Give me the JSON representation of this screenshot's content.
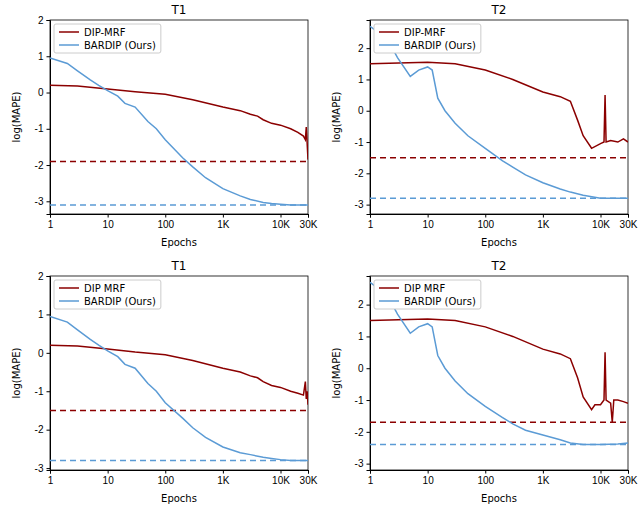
{
  "chart_data": [
    {
      "type": "line",
      "title": "T1",
      "x_label": "Epochs",
      "y_label": "log(MAPE)",
      "log": "x",
      "legend": "upper left",
      "xlim": [
        1,
        30000
      ],
      "xticks": [
        1,
        10,
        100,
        {
          "value": 1000,
          "label": "1K"
        },
        {
          "value": 10000,
          "label": "10K"
        },
        {
          "value": 30000,
          "label": "30K"
        }
      ],
      "ylim": [
        -3.35,
        2
      ],
      "yticks": [
        -3,
        -2,
        -1,
        0,
        1,
        2
      ],
      "series": [
        {
          "name": "DIP-MRF",
          "color": "#8b0000",
          "line_style": "solid",
          "x": [
            1,
            3,
            10,
            30,
            100,
            300,
            1000,
            2000,
            3000,
            4000,
            5000,
            7000,
            10000,
            15000,
            20000,
            25000,
            27000,
            28000,
            29000,
            30000
          ],
          "values": [
            0.2,
            0.18,
            0.1,
            0.02,
            -0.05,
            -0.2,
            -0.4,
            -0.5,
            -0.6,
            -0.65,
            -0.75,
            -0.85,
            -0.9,
            -1.0,
            -1.1,
            -1.2,
            -1.3,
            -0.95,
            -1.4,
            -1.85
          ]
        },
        {
          "name": "BARDIP (Ours)",
          "color": "#5b9bd5",
          "line_style": "solid",
          "x": [
            1,
            2,
            3,
            5,
            7,
            10,
            15,
            20,
            30,
            50,
            70,
            100,
            200,
            300,
            500,
            1000,
            2000,
            3000,
            5000,
            7000,
            10000,
            15000,
            20000,
            30000
          ],
          "values": [
            0.95,
            0.8,
            0.6,
            0.35,
            0.2,
            0.05,
            -0.1,
            -0.3,
            -0.4,
            -0.8,
            -1.0,
            -1.3,
            -1.8,
            -2.05,
            -2.35,
            -2.65,
            -2.85,
            -2.95,
            -3.03,
            -3.06,
            -3.08,
            -3.1,
            -3.1,
            -3.1
          ]
        }
      ],
      "reference_lines": [
        {
          "value": -1.9,
          "color": "#8b0000",
          "line_style": "dashed"
        },
        {
          "value": -3.1,
          "color": "#5b9bd5",
          "line_style": "dashed"
        }
      ]
    },
    {
      "type": "line",
      "title": "T2",
      "x_label": "Epochs",
      "y_label": "log(MAPE)",
      "log": "x",
      "legend": "upper left",
      "xlim": [
        1,
        30000
      ],
      "xticks": [
        1,
        10,
        100,
        {
          "value": 1000,
          "label": "1K"
        },
        {
          "value": 10000,
          "label": "10K"
        },
        {
          "value": 30000,
          "label": "30K"
        }
      ],
      "ylim": [
        -3.3,
        2.9
      ],
      "yticks": [
        -3,
        -2,
        -1,
        0,
        1,
        2
      ],
      "series": [
        {
          "name": "DIP-MRF",
          "color": "#8b0000",
          "line_style": "solid",
          "x": [
            1,
            10,
            30,
            100,
            300,
            1000,
            2000,
            3000,
            4000,
            5000,
            7000,
            10000,
            11500,
            12000,
            12500,
            15000,
            20000,
            25000,
            30000
          ],
          "values": [
            1.5,
            1.55,
            1.5,
            1.3,
            1.0,
            0.6,
            0.45,
            0.3,
            -0.3,
            -0.8,
            -1.2,
            -1.05,
            -1.0,
            0.5,
            -1.0,
            -0.95,
            -1.0,
            -0.9,
            -1.0
          ]
        },
        {
          "name": "BARDIP (Ours)",
          "color": "#5b9bd5",
          "line_style": "solid",
          "x": [
            1,
            2,
            3,
            5,
            7,
            10,
            12,
            15,
            20,
            30,
            50,
            100,
            200,
            300,
            500,
            1000,
            2000,
            3000,
            5000,
            10000,
            20000,
            30000
          ],
          "values": [
            2.7,
            2.3,
            1.7,
            1.1,
            1.3,
            1.4,
            1.3,
            0.4,
            0.0,
            -0.4,
            -0.8,
            -1.2,
            -1.6,
            -1.8,
            -2.05,
            -2.3,
            -2.5,
            -2.6,
            -2.7,
            -2.8,
            -2.8,
            -2.8
          ]
        }
      ],
      "reference_lines": [
        {
          "value": -1.5,
          "color": "#8b0000",
          "line_style": "dashed"
        },
        {
          "value": -2.8,
          "color": "#5b9bd5",
          "line_style": "dashed"
        }
      ]
    },
    {
      "type": "line",
      "title": "T1",
      "x_label": "Epochs",
      "y_label": "log(MAPE)",
      "log": "x",
      "legend": "upper left",
      "xlim": [
        1,
        30000
      ],
      "xticks": [
        1,
        10,
        100,
        {
          "value": 1000,
          "label": "1K"
        },
        {
          "value": 10000,
          "label": "10K"
        },
        {
          "value": 30000,
          "label": "30K"
        }
      ],
      "ylim": [
        -3.05,
        2
      ],
      "yticks": [
        -3,
        -2,
        -1,
        0,
        1,
        2
      ],
      "series": [
        {
          "name": "DIP MRF",
          "color": "#8b0000",
          "line_style": "solid",
          "x": [
            1,
            3,
            10,
            30,
            100,
            300,
            1000,
            2000,
            3000,
            4000,
            5000,
            7000,
            10000,
            15000,
            20000,
            25000,
            27000,
            28000,
            29000,
            30000
          ],
          "values": [
            0.2,
            0.18,
            0.1,
            0.02,
            -0.05,
            -0.2,
            -0.4,
            -0.5,
            -0.6,
            -0.65,
            -0.75,
            -0.85,
            -0.9,
            -1.0,
            -1.05,
            -1.1,
            -0.75,
            -1.2,
            -1.0,
            -1.35
          ]
        },
        {
          "name": "BARDIP (Ours)",
          "color": "#5b9bd5",
          "line_style": "solid",
          "x": [
            1,
            2,
            3,
            5,
            7,
            10,
            15,
            20,
            30,
            50,
            70,
            100,
            200,
            300,
            500,
            1000,
            2000,
            3000,
            5000,
            7000,
            10000,
            15000,
            20000,
            30000
          ],
          "values": [
            0.95,
            0.8,
            0.6,
            0.35,
            0.2,
            0.05,
            -0.1,
            -0.3,
            -0.4,
            -0.8,
            -1.0,
            -1.3,
            -1.7,
            -1.95,
            -2.2,
            -2.45,
            -2.6,
            -2.65,
            -2.72,
            -2.75,
            -2.78,
            -2.8,
            -2.8,
            -2.8
          ]
        }
      ],
      "reference_lines": [
        {
          "value": -1.5,
          "color": "#8b0000",
          "line_style": "dashed"
        },
        {
          "value": -2.8,
          "color": "#5b9bd5",
          "line_style": "dashed"
        }
      ]
    },
    {
      "type": "line",
      "title": "T2",
      "x_label": "Epochs",
      "y_label": "log(MAPE)",
      "log": "x",
      "legend": "upper left",
      "xlim": [
        1,
        30000
      ],
      "xticks": [
        1,
        10,
        100,
        {
          "value": 1000,
          "label": "1K"
        },
        {
          "value": 10000,
          "label": "10K"
        },
        {
          "value": 30000,
          "label": "30K"
        }
      ],
      "ylim": [
        -3.2,
        2.9
      ],
      "yticks": [
        -3,
        -2,
        -1,
        0,
        1,
        2
      ],
      "series": [
        {
          "name": "DIP MRF",
          "color": "#8b0000",
          "line_style": "solid",
          "x": [
            1,
            10,
            30,
            100,
            300,
            1000,
            2000,
            3000,
            4000,
            5000,
            7000,
            8000,
            10000,
            11500,
            12000,
            12500,
            15000,
            16000,
            17000,
            20000,
            25000,
            30000
          ],
          "values": [
            1.5,
            1.55,
            1.5,
            1.3,
            1.0,
            0.6,
            0.45,
            0.3,
            -0.3,
            -0.9,
            -1.3,
            -1.15,
            -1.15,
            -1.0,
            0.5,
            -1.0,
            -1.1,
            -1.7,
            -1.0,
            -1.0,
            -1.05,
            -1.1
          ]
        },
        {
          "name": "BARDIP (Ours)",
          "color": "#5b9bd5",
          "line_style": "solid",
          "x": [
            1,
            2,
            3,
            5,
            7,
            10,
            12,
            15,
            20,
            30,
            50,
            100,
            200,
            300,
            500,
            1000,
            2000,
            3000,
            5000,
            10000,
            20000,
            30000
          ],
          "values": [
            2.7,
            2.3,
            1.7,
            1.1,
            1.3,
            1.4,
            1.3,
            0.4,
            0.0,
            -0.4,
            -0.8,
            -1.2,
            -1.55,
            -1.75,
            -1.95,
            -2.1,
            -2.25,
            -2.35,
            -2.4,
            -2.4,
            -2.38,
            -2.35
          ]
        }
      ],
      "reference_lines": [
        {
          "value": -1.7,
          "color": "#8b0000",
          "line_style": "dashed"
        },
        {
          "value": -2.4,
          "color": "#5b9bd5",
          "line_style": "dashed"
        }
      ]
    }
  ]
}
